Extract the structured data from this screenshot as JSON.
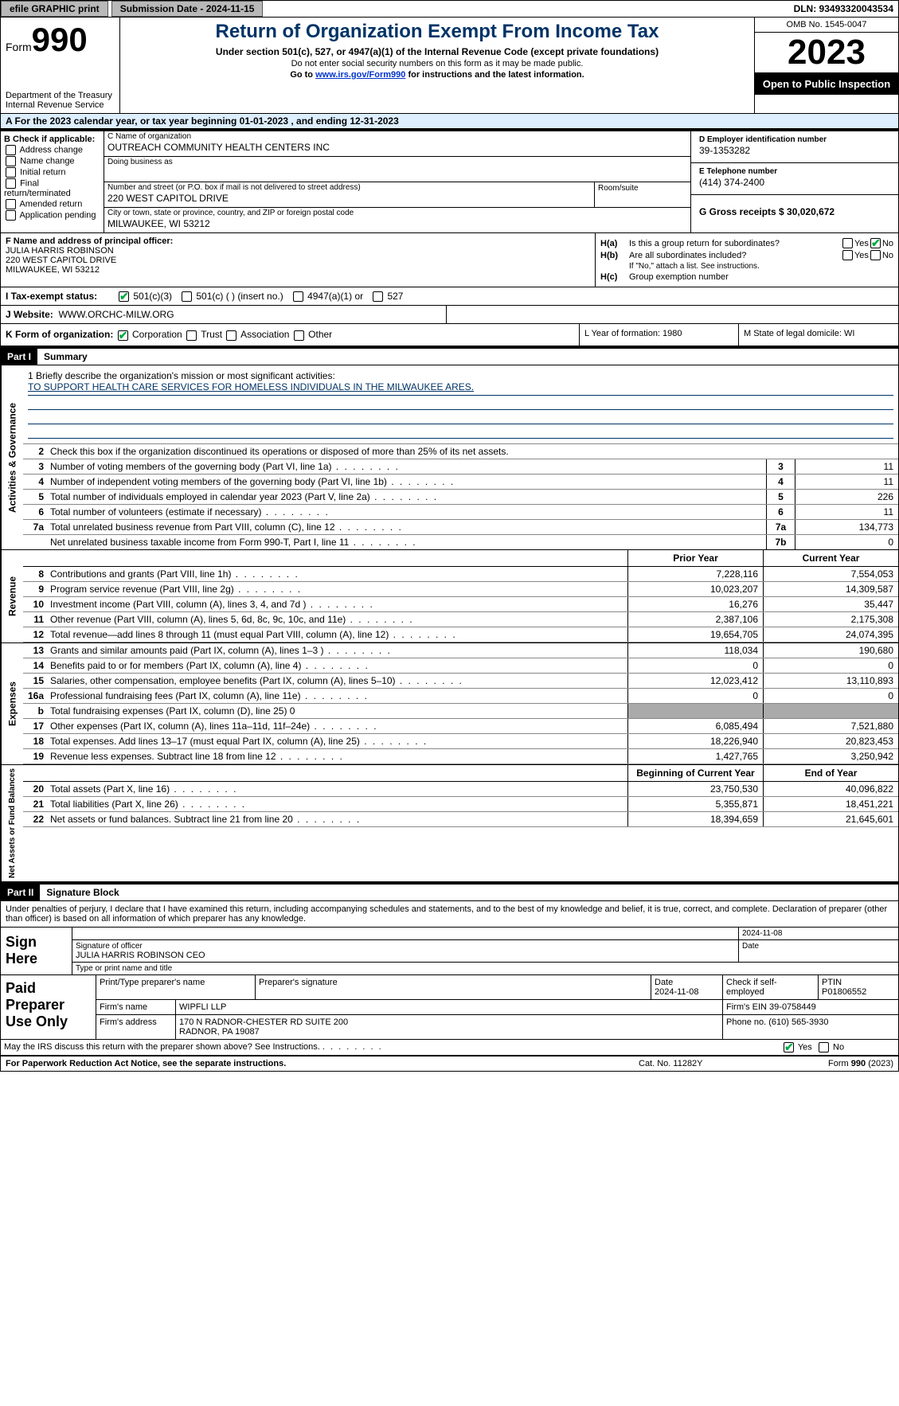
{
  "topbar": {
    "efile_label": "efile GRAPHIC print",
    "submission_label": "Submission Date - 2024-11-15",
    "dln_label": "DLN: 93493320043534"
  },
  "header": {
    "form_word": "Form",
    "form_num": "990",
    "dept1": "Department of the Treasury",
    "dept2": "Internal Revenue Service",
    "title": "Return of Organization Exempt From Income Tax",
    "subtitle": "Under section 501(c), 527, or 4947(a)(1) of the Internal Revenue Code (except private foundations)",
    "note1": "Do not enter social security numbers on this form as it may be made public.",
    "note2_pre": "Go to ",
    "note2_link": "www.irs.gov/Form990",
    "note2_post": " for instructions and the latest information.",
    "omb": "OMB No. 1545-0047",
    "year": "2023",
    "openpub": "Open to Public Inspection"
  },
  "rowA": "A For the 2023 calendar year, or tax year beginning 01-01-2023   , and ending 12-31-2023",
  "boxB": {
    "hdr": "B Check if applicable:",
    "items": [
      "Address change",
      "Name change",
      "Initial return",
      "Final return/terminated",
      "Amended return",
      "Application pending"
    ]
  },
  "boxC": {
    "name_label": "C Name of organization",
    "name": "OUTREACH COMMUNITY HEALTH CENTERS INC",
    "dba_label": "Doing business as",
    "addr_label": "Number and street (or P.O. box if mail is not delivered to street address)",
    "addr": "220 WEST CAPITOL DRIVE",
    "room_label": "Room/suite",
    "city_label": "City or town, state or province, country, and ZIP or foreign postal code",
    "city": "MILWAUKEE, WI  53212"
  },
  "boxD": {
    "ein_label": "D Employer identification number",
    "ein": "39-1353282",
    "phone_label": "E Telephone number",
    "phone": "(414) 374-2400",
    "gross_label": "G Gross receipts $ 30,020,672"
  },
  "boxF": {
    "label": "F  Name and address of principal officer:",
    "name": "JULIA HARRIS ROBINSON",
    "addr1": "220 WEST CAPITOL DRIVE",
    "addr2": "MILWAUKEE, WI  53212"
  },
  "boxH": {
    "a_lbl": "H(a)",
    "a_txt": "Is this a group return for subordinates?",
    "b_lbl": "H(b)",
    "b_txt": "Are all subordinates included?",
    "b_note": "If \"No,\" attach a list. See instructions.",
    "c_lbl": "H(c)",
    "c_txt": "Group exemption number",
    "yes": "Yes",
    "no": "No"
  },
  "status": {
    "label": "I  Tax-exempt status:",
    "o1": "501(c)(3)",
    "o2": "501(c) (  ) (insert no.)",
    "o3": "4947(a)(1) or",
    "o4": "527"
  },
  "rowJ": {
    "label": "J  Website:",
    "value": "WWW.ORCHC-MILW.ORG"
  },
  "rowK": {
    "label": "K Form of organization:",
    "o1": "Corporation",
    "o2": "Trust",
    "o3": "Association",
    "o4": "Other",
    "l_label": "L Year of formation: 1980",
    "m_label": "M State of legal domicile: WI"
  },
  "part1": {
    "num": "Part I",
    "title": "Summary"
  },
  "summary": {
    "sec1_label": "Activities & Governance",
    "mission_label": "1   Briefly describe the organization's mission or most significant activities:",
    "mission_text": "TO SUPPORT HEALTH CARE SERVICES FOR HOMELESS INDIVIDUALS IN THE MILWAUKEE ARES.",
    "line2": "Check this box        if the organization discontinued its operations or disposed of more than 25% of its net assets.",
    "rows1": [
      {
        "n": "3",
        "d": "Number of voting members of the governing body (Part VI, line 1a)",
        "b": "3",
        "v": "11"
      },
      {
        "n": "4",
        "d": "Number of independent voting members of the governing body (Part VI, line 1b)",
        "b": "4",
        "v": "11"
      },
      {
        "n": "5",
        "d": "Total number of individuals employed in calendar year 2023 (Part V, line 2a)",
        "b": "5",
        "v": "226"
      },
      {
        "n": "6",
        "d": "Total number of volunteers (estimate if necessary)",
        "b": "6",
        "v": "11"
      },
      {
        "n": "7a",
        "d": "Total unrelated business revenue from Part VIII, column (C), line 12",
        "b": "7a",
        "v": "134,773"
      },
      {
        "n": "",
        "d": "Net unrelated business taxable income from Form 990-T, Part I, line 11",
        "b": "7b",
        "v": "0"
      }
    ],
    "sec2_label": "Revenue",
    "col_prior": "Prior Year",
    "col_curr": "Current Year",
    "rows2": [
      {
        "n": "8",
        "d": "Contributions and grants (Part VIII, line 1h)",
        "p": "7,228,116",
        "c": "7,554,053"
      },
      {
        "n": "9",
        "d": "Program service revenue (Part VIII, line 2g)",
        "p": "10,023,207",
        "c": "14,309,587"
      },
      {
        "n": "10",
        "d": "Investment income (Part VIII, column (A), lines 3, 4, and 7d )",
        "p": "16,276",
        "c": "35,447"
      },
      {
        "n": "11",
        "d": "Other revenue (Part VIII, column (A), lines 5, 6d, 8c, 9c, 10c, and 11e)",
        "p": "2,387,106",
        "c": "2,175,308"
      },
      {
        "n": "12",
        "d": "Total revenue—add lines 8 through 11 (must equal Part VIII, column (A), line 12)",
        "p": "19,654,705",
        "c": "24,074,395"
      }
    ],
    "sec3_label": "Expenses",
    "rows3": [
      {
        "n": "13",
        "d": "Grants and similar amounts paid (Part IX, column (A), lines 1–3 )",
        "p": "118,034",
        "c": "190,680"
      },
      {
        "n": "14",
        "d": "Benefits paid to or for members (Part IX, column (A), line 4)",
        "p": "0",
        "c": "0"
      },
      {
        "n": "15",
        "d": "Salaries, other compensation, employee benefits (Part IX, column (A), lines 5–10)",
        "p": "12,023,412",
        "c": "13,110,893"
      },
      {
        "n": "16a",
        "d": "Professional fundraising fees (Part IX, column (A), line 11e)",
        "p": "0",
        "c": "0"
      },
      {
        "n": "b",
        "d": "Total fundraising expenses (Part IX, column (D), line 25) 0",
        "p": "",
        "c": "",
        "shade": true
      },
      {
        "n": "17",
        "d": "Other expenses (Part IX, column (A), lines 11a–11d, 11f–24e)",
        "p": "6,085,494",
        "c": "7,521,880"
      },
      {
        "n": "18",
        "d": "Total expenses. Add lines 13–17 (must equal Part IX, column (A), line 25)",
        "p": "18,226,940",
        "c": "20,823,453"
      },
      {
        "n": "19",
        "d": "Revenue less expenses. Subtract line 18 from line 12",
        "p": "1,427,765",
        "c": "3,250,942"
      }
    ],
    "sec4_label": "Net Assets or Fund Balances",
    "col_begin": "Beginning of Current Year",
    "col_end": "End of Year",
    "rows4": [
      {
        "n": "20",
        "d": "Total assets (Part X, line 16)",
        "p": "23,750,530",
        "c": "40,096,822"
      },
      {
        "n": "21",
        "d": "Total liabilities (Part X, line 26)",
        "p": "5,355,871",
        "c": "18,451,221"
      },
      {
        "n": "22",
        "d": "Net assets or fund balances. Subtract line 21 from line 20",
        "p": "18,394,659",
        "c": "21,645,601"
      }
    ]
  },
  "part2": {
    "num": "Part II",
    "title": "Signature Block"
  },
  "sig": {
    "decl": "Under penalties of perjury, I declare that I have examined this return, including accompanying schedules and statements, and to the best of my knowledge and belief, it is true, correct, and complete. Declaration of preparer (other than officer) is based on all information of which preparer has any knowledge.",
    "sign_here": "Sign Here",
    "sig_of_officer": "Signature of officer",
    "officer_name": "JULIA HARRIS ROBINSON  CEO",
    "type_name": "Type or print name and title",
    "date_lbl": "Date",
    "date1": "2024-11-08",
    "paid": "Paid Preparer Use Only",
    "prep_name_lbl": "Print/Type preparer's name",
    "prep_sig_lbl": "Preparer's signature",
    "prep_date": "2024-11-08",
    "check_self": "Check        if self-employed",
    "ptin_lbl": "PTIN",
    "ptin": "P01806552",
    "firm_name_lbl": "Firm's name",
    "firm_name": "WIPFLI LLP",
    "firm_ein_lbl": "Firm's EIN",
    "firm_ein": "39-0758449",
    "firm_addr_lbl": "Firm's address",
    "firm_addr1": "170 N RADNOR-CHESTER RD SUITE 200",
    "firm_addr2": "RADNOR, PA  19087",
    "firm_phone_lbl": "Phone no.",
    "firm_phone": "(610) 565-3930",
    "discuss": "May the IRS discuss this return with the preparer shown above? See Instructions."
  },
  "footer": {
    "pra": "For Paperwork Reduction Act Notice, see the separate instructions.",
    "cat": "Cat. No. 11282Y",
    "form": "Form 990 (2023)"
  }
}
